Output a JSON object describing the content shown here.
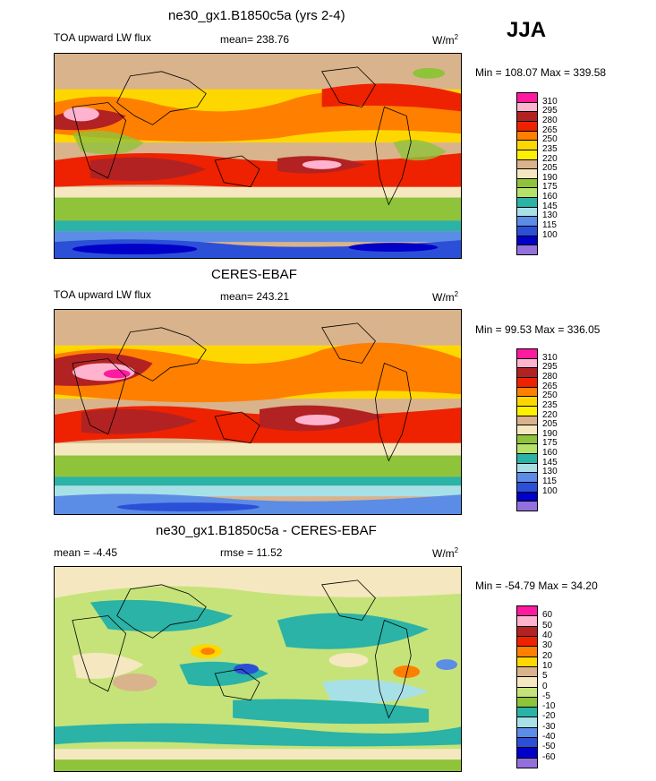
{
  "season": "JJA",
  "panels": [
    {
      "title": "ne30_gx1.B1850c5a (yrs 2-4)",
      "left": "TOA upward LW flux",
      "center": "mean= 238.76",
      "units": "W/m",
      "units_sup": "2",
      "minmax": "Min = 108.07 Max = 339.58"
    },
    {
      "title": "CERES-EBAF",
      "left": "TOA upward LW flux",
      "center": "mean= 243.21",
      "units": "W/m",
      "units_sup": "2",
      "minmax": "Min =  99.53 Max = 336.05"
    },
    {
      "title": "ne30_gx1.B1850c5a - CERES-EBAF",
      "left": "mean =  -4.45",
      "center": "rmse =  11.52",
      "units": "W/m",
      "units_sup": "2",
      "minmax": "Min = -54.79 Max =  34.20"
    }
  ],
  "colorbars": {
    "abs": {
      "labels": [
        "310",
        "295",
        "280",
        "265",
        "250",
        "235",
        "220",
        "205",
        "190",
        "175",
        "160",
        "145",
        "130",
        "115",
        "100"
      ],
      "colors": [
        "#ff1aa0",
        "#ffb3cf",
        "#b22222",
        "#ee2200",
        "#ff7f00",
        "#ffd700",
        "#fff000",
        "#d9b38c",
        "#f5e8c0",
        "#8fc33a",
        "#b5e36a",
        "#2ab3a6",
        "#a8e0e8",
        "#5b8ce6",
        "#2c4fd8",
        "#0000c8",
        "#9370db"
      ]
    },
    "diff": {
      "labels": [
        "60",
        "50",
        "40",
        "30",
        "20",
        "10",
        "5",
        "0",
        "-5",
        "-10",
        "-20",
        "-30",
        "-40",
        "-50",
        "-60"
      ],
      "colors": [
        "#ff1aa0",
        "#ffb3cf",
        "#b22222",
        "#ee2200",
        "#ff7f00",
        "#ffd700",
        "#d9b38c",
        "#f5e8c0",
        "#c6e37a",
        "#8fc33a",
        "#2ab3a6",
        "#a8e0e8",
        "#5b8ce6",
        "#2c4fd8",
        "#0000c8",
        "#9370db"
      ]
    }
  }
}
